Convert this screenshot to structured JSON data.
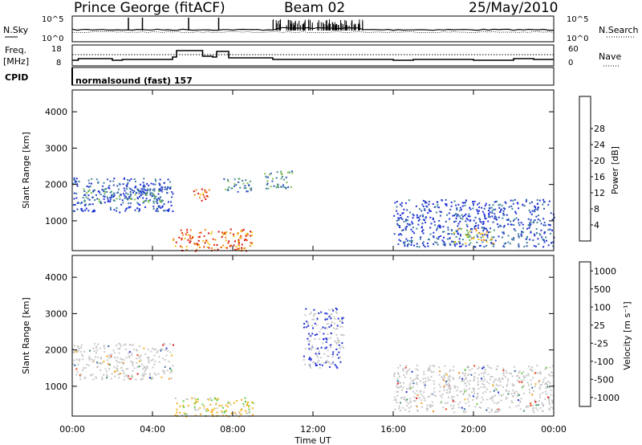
{
  "header": {
    "station": "Prince George (fitACF)",
    "beam": "Beam 02",
    "date": "25/May/2010"
  },
  "strip": {
    "nsky_label": "N.Sky",
    "nsky_ticks": [
      "10^5",
      "10^0"
    ],
    "nsearch_label": "N.Search",
    "nsearch_ticks": [
      "10^5",
      "10^0"
    ],
    "freq_label_1": "Freq.",
    "freq_label_2": "[MHz]",
    "freq_ticks": [
      "18",
      "8"
    ],
    "nave_label": "Nave",
    "nave_ticks": [
      "60",
      "0"
    ],
    "cpid_label": "CPID",
    "cpid_text": "normalsound (fast) 157"
  },
  "chart_data": [
    {
      "type": "heatmap",
      "panel": "power",
      "ylabel": "Slant Range [km]",
      "xlabel": "",
      "yticks": [
        1000,
        2000,
        3000,
        4000
      ],
      "ylim": [
        180,
        4600
      ],
      "xlim": [
        0,
        24
      ],
      "colorbar": {
        "label": "Power [dB]",
        "ticks": [
          "4",
          "8",
          "12",
          "16",
          "20",
          "24",
          "28"
        ],
        "colors": [
          "#1e2fd6",
          "#2a52b8",
          "#3f7f9e",
          "#4aa07a",
          "#7fbf4a",
          "#f2c21a",
          "#f08a1a",
          "#e83a10",
          "#d81010"
        ]
      },
      "regions": [
        {
          "t0": 0.0,
          "t1": 5.0,
          "r0": 1250,
          "r1": 2200,
          "level": "low-mid"
        },
        {
          "t0": 0.5,
          "t1": 4.5,
          "r0": 1500,
          "r1": 1900,
          "level": "mid"
        },
        {
          "t0": 5.0,
          "t1": 9.0,
          "r0": 180,
          "r1": 800,
          "level": "high"
        },
        {
          "t0": 6.0,
          "t1": 6.8,
          "r0": 1500,
          "r1": 1900,
          "level": "high"
        },
        {
          "t0": 7.5,
          "t1": 9.0,
          "r0": 1800,
          "r1": 2200,
          "level": "mid"
        },
        {
          "t0": 9.5,
          "t1": 11.0,
          "r0": 1900,
          "r1": 2400,
          "level": "mid"
        },
        {
          "t0": 16.0,
          "t1": 24.0,
          "r0": 300,
          "r1": 1600,
          "level": "low-mid"
        },
        {
          "t0": 19.0,
          "t1": 21.0,
          "r0": 400,
          "r1": 800,
          "level": "mid-high"
        }
      ]
    },
    {
      "type": "heatmap",
      "panel": "velocity",
      "ylabel": "Slant Range [km]",
      "xlabel": "Time UT",
      "xticks": [
        "00:00",
        "04:00",
        "08:00",
        "12:00",
        "16:00",
        "20:00",
        "00:00"
      ],
      "yticks": [
        1000,
        2000,
        3000,
        4000
      ],
      "ylim": [
        180,
        4600
      ],
      "xlim": [
        0,
        24
      ],
      "colorbar": {
        "label": "Velocity [m s⁻¹]",
        "ticks": [
          "1000",
          "500",
          "100",
          "25",
          "-25",
          "-100",
          "-500",
          "-1000"
        ],
        "colors": [
          "#1e2fd6",
          "#2a64a8",
          "#3f8f6a",
          "#5ccc3a",
          "#c8c8c8",
          "#f2b21a",
          "#f08a1a",
          "#e84010",
          "#e81010"
        ]
      },
      "regions": [
        {
          "t0": 0.0,
          "t1": 5.0,
          "r0": 1200,
          "r1": 2200,
          "level": "gray"
        },
        {
          "t0": 5.0,
          "t1": 9.0,
          "r0": 180,
          "r1": 700,
          "level": "orange-green"
        },
        {
          "t0": 11.5,
          "t1": 13.5,
          "r0": 1500,
          "r1": 3200,
          "level": "gray-blue"
        },
        {
          "t0": 16.0,
          "t1": 24.0,
          "r0": 300,
          "r1": 1600,
          "level": "gray"
        }
      ]
    }
  ]
}
